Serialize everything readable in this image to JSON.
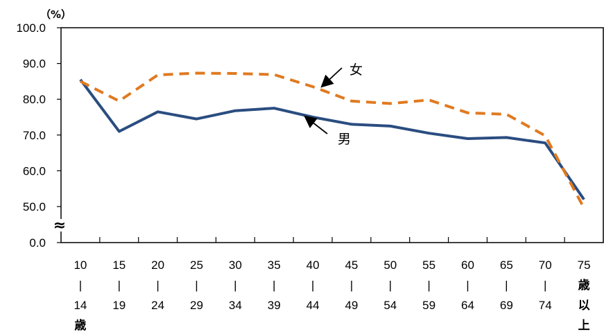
{
  "chart_data": {
    "type": "line",
    "y_unit_label": "（%）",
    "ylim": [
      0,
      100
    ],
    "y_ticks": [
      "100.0",
      "90.0",
      "80.0",
      "70.0",
      "60.0",
      "50.0",
      "0.0"
    ],
    "axis_break_symbol": "≈",
    "categories": [
      [
        "10",
        "|",
        "14",
        "歳"
      ],
      [
        "15",
        "|",
        "19"
      ],
      [
        "20",
        "|",
        "24"
      ],
      [
        "25",
        "|",
        "29"
      ],
      [
        "30",
        "|",
        "34"
      ],
      [
        "35",
        "|",
        "39"
      ],
      [
        "40",
        "|",
        "44"
      ],
      [
        "45",
        "|",
        "49"
      ],
      [
        "50",
        "|",
        "54"
      ],
      [
        "55",
        "|",
        "59"
      ],
      [
        "60",
        "|",
        "64"
      ],
      [
        "65",
        "|",
        "69"
      ],
      [
        "70",
        "|",
        "74"
      ],
      [
        "75",
        "歳",
        "以",
        "上"
      ]
    ],
    "series": [
      {
        "name": "男",
        "color": "#2a4d80",
        "style": "solid",
        "values": [
          85.5,
          71.0,
          76.5,
          74.5,
          76.8,
          77.5,
          75.0,
          73.0,
          72.5,
          70.5,
          69.0,
          69.3,
          67.8,
          52.0
        ]
      },
      {
        "name": "女",
        "color": "#e07a20",
        "style": "dashed",
        "values": [
          85.0,
          79.5,
          86.8,
          87.3,
          87.2,
          86.9,
          83.5,
          79.5,
          78.8,
          79.8,
          76.2,
          75.8,
          69.8,
          48.0
        ]
      }
    ],
    "grid": false,
    "legend": "inline annotations with arrows"
  }
}
